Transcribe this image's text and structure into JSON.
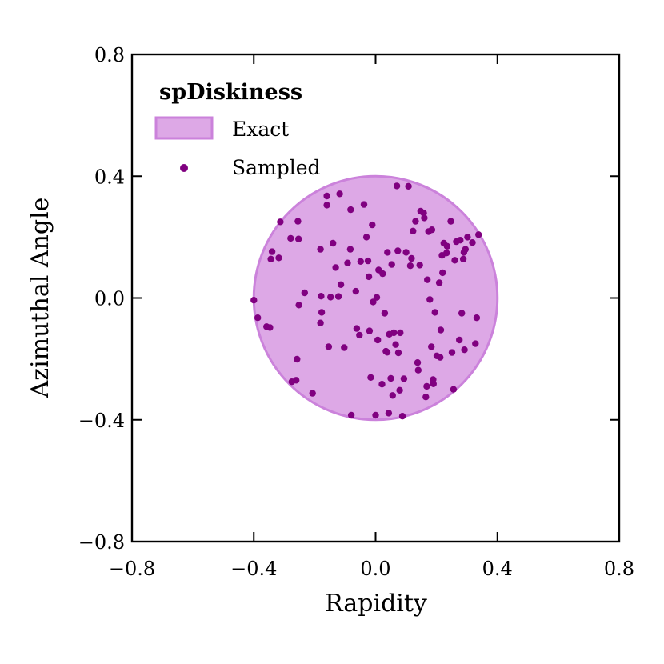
{
  "chart_data": {
    "type": "scatter",
    "title": "",
    "xlabel": "Rapidity",
    "ylabel": "Azimuthal Angle",
    "xlim": [
      -0.8,
      0.8
    ],
    "ylim": [
      -0.8,
      0.8
    ],
    "xticks": [
      -0.8,
      -0.4,
      0.0,
      0.4,
      0.8
    ],
    "yticks": [
      -0.8,
      -0.4,
      0.0,
      0.4,
      0.8
    ],
    "xtick_labels": [
      "−0.8",
      "−0.4",
      "0.0",
      "0.4",
      "0.8"
    ],
    "ytick_labels": [
      "−0.8",
      "−0.4",
      "0.0",
      "0.4",
      "0.8"
    ],
    "grid": false,
    "legend": {
      "title": "spDiskiness",
      "position": "top-left",
      "entries": [
        {
          "label": "Exact",
          "marker": "patch"
        },
        {
          "label": "Sampled",
          "marker": "dot"
        }
      ]
    },
    "exact_region": {
      "shape": "disk",
      "center": [
        0.0,
        0.0
      ],
      "radius": 0.4
    },
    "colors": {
      "fill": "#DDA8E6",
      "edge": "#CB82DB",
      "points": "#800080"
    },
    "sampled_points": [
      [
        -0.4,
        -0.007
      ],
      [
        -0.387,
        -0.065
      ],
      [
        -0.358,
        -0.094
      ],
      [
        -0.347,
        -0.097
      ],
      [
        -0.344,
        0.128
      ],
      [
        -0.34,
        0.152
      ],
      [
        -0.318,
        0.132
      ],
      [
        -0.313,
        0.25
      ],
      [
        -0.279,
        0.196
      ],
      [
        -0.275,
        -0.275
      ],
      [
        -0.261,
        -0.27
      ],
      [
        -0.258,
        -0.201
      ],
      [
        -0.255,
        0.252
      ],
      [
        -0.253,
        0.194
      ],
      [
        -0.252,
        -0.023
      ],
      [
        -0.233,
        0.017
      ],
      [
        -0.207,
        -0.313
      ],
      [
        -0.181,
        0.16
      ],
      [
        -0.181,
        -0.082
      ],
      [
        -0.179,
        0.006
      ],
      [
        -0.177,
        -0.047
      ],
      [
        -0.16,
        0.335
      ],
      [
        -0.16,
        0.305
      ],
      [
        -0.154,
        -0.16
      ],
      [
        -0.148,
        0.003
      ],
      [
        -0.14,
        0.18
      ],
      [
        -0.131,
        0.1
      ],
      [
        -0.122,
        0.005
      ],
      [
        -0.118,
        0.342
      ],
      [
        -0.114,
        0.044
      ],
      [
        -0.103,
        -0.163
      ],
      [
        -0.092,
        0.115
      ],
      [
        -0.083,
        0.16
      ],
      [
        -0.082,
        0.29
      ],
      [
        -0.08,
        -0.385
      ],
      [
        -0.065,
        0.022
      ],
      [
        -0.062,
        -0.1
      ],
      [
        -0.053,
        -0.122
      ],
      [
        -0.049,
        0.12
      ],
      [
        -0.038,
        0.307
      ],
      [
        -0.03,
        0.2
      ],
      [
        -0.025,
        0.122
      ],
      [
        -0.022,
        0.07
      ],
      [
        -0.02,
        -0.108
      ],
      [
        -0.016,
        -0.261
      ],
      [
        -0.011,
        0.24
      ],
      [
        -0.008,
        -0.013
      ],
      [
        0.0,
        -0.385
      ],
      [
        0.004,
        0.002
      ],
      [
        0.007,
        -0.138
      ],
      [
        0.01,
        0.092
      ],
      [
        0.021,
        -0.283
      ],
      [
        0.023,
        0.08
      ],
      [
        0.03,
        -0.05
      ],
      [
        0.034,
        -0.175
      ],
      [
        0.038,
        -0.178
      ],
      [
        0.039,
        0.15
      ],
      [
        0.043,
        -0.378
      ],
      [
        0.045,
        -0.119
      ],
      [
        0.05,
        -0.264
      ],
      [
        0.053,
        0.11
      ],
      [
        0.056,
        -0.32
      ],
      [
        0.06,
        -0.114
      ],
      [
        0.066,
        -0.153
      ],
      [
        0.07,
        0.368
      ],
      [
        0.073,
        0.155
      ],
      [
        0.075,
        -0.18
      ],
      [
        0.079,
        -0.303
      ],
      [
        0.081,
        -0.114
      ],
      [
        0.088,
        -0.388
      ],
      [
        0.093,
        -0.265
      ],
      [
        0.1,
        0.15
      ],
      [
        0.108,
        0.367
      ],
      [
        0.114,
        0.106
      ],
      [
        0.118,
        0.13
      ],
      [
        0.123,
        0.22
      ],
      [
        0.131,
        0.252
      ],
      [
        0.138,
        -0.212
      ],
      [
        0.14,
        -0.237
      ],
      [
        0.145,
        0.108
      ],
      [
        0.148,
        0.285
      ],
      [
        0.158,
        0.279
      ],
      [
        0.16,
        0.263
      ],
      [
        0.165,
        -0.325
      ],
      [
        0.168,
        -0.29
      ],
      [
        0.17,
        0.06
      ],
      [
        0.174,
        0.218
      ],
      [
        0.178,
        -0.005
      ],
      [
        0.183,
        -0.16
      ],
      [
        0.185,
        0.224
      ],
      [
        0.189,
        -0.268
      ],
      [
        0.19,
        -0.282
      ],
      [
        0.195,
        -0.047
      ],
      [
        0.201,
        -0.19
      ],
      [
        0.209,
        0.05
      ],
      [
        0.212,
        -0.195
      ],
      [
        0.214,
        -0.105
      ],
      [
        0.218,
        0.14
      ],
      [
        0.22,
        0.083
      ],
      [
        0.224,
        0.18
      ],
      [
        0.233,
        0.148
      ],
      [
        0.235,
        0.17
      ],
      [
        0.247,
        0.252
      ],
      [
        0.251,
        -0.179
      ],
      [
        0.256,
        -0.3
      ],
      [
        0.26,
        0.124
      ],
      [
        0.265,
        0.185
      ],
      [
        0.275,
        -0.138
      ],
      [
        0.278,
        0.19
      ],
      [
        0.283,
        -0.05
      ],
      [
        0.288,
        0.128
      ],
      [
        0.29,
        0.15
      ],
      [
        0.292,
        -0.17
      ],
      [
        0.295,
        0.16
      ],
      [
        0.302,
        0.2
      ],
      [
        0.318,
        0.182
      ],
      [
        0.328,
        -0.15
      ],
      [
        0.332,
        -0.065
      ],
      [
        0.338,
        0.208
      ]
    ]
  }
}
